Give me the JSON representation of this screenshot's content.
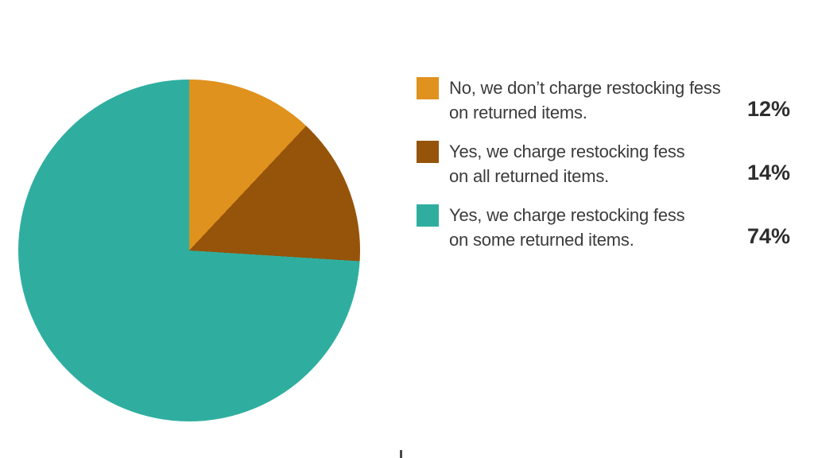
{
  "chart_data": {
    "type": "pie",
    "title": "",
    "categories": [
      "No, we don’t charge restocking fess on returned items.",
      "Yes, we charge restocking fess on all returned items.",
      "Yes, we charge restocking fess on some returned items."
    ],
    "values": [
      12,
      14,
      74
    ],
    "values_unit": "%",
    "slices": [
      {
        "label": "No, we don’t charge restocking fess on returned items.",
        "value": 12,
        "color": "#E0921E"
      },
      {
        "label": "Yes, we charge restocking fess on all returned items.",
        "value": 14,
        "color": "#955409"
      },
      {
        "label": "Yes, we charge restocking fess on some returned items.",
        "value": 74,
        "color": "#2FAEA0"
      }
    ],
    "start_angle_deg": 0,
    "direction": "clockwise",
    "legend_position": "right"
  },
  "legend": {
    "items": [
      {
        "line1": "No, we don’t charge restocking fess",
        "line2": "on returned items.",
        "percent": "12%",
        "swatch_color": "#E0921E"
      },
      {
        "line1": "Yes, we charge restocking fess",
        "line2": "on all returned items.",
        "percent": "14%",
        "swatch_color": "#955409"
      },
      {
        "line1": "Yes, we charge restocking fess",
        "line2": "on some returned items.",
        "percent": "74%",
        "swatch_color": "#2FAEA0"
      }
    ]
  },
  "colors": {
    "background": "#FFFFFF",
    "label_text": "#3B3B3B",
    "percent_text": "#2D2D2D",
    "orange": "#E0921E",
    "brown": "#955409",
    "teal": "#2FAEA0"
  }
}
